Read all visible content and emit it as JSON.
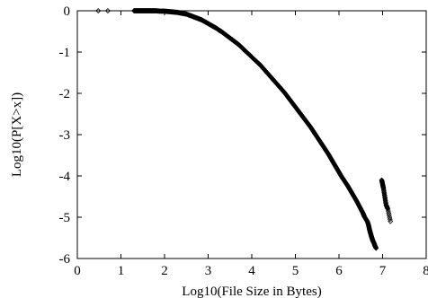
{
  "chart_data": {
    "type": "scatter",
    "title": "",
    "xlabel": "Log10(File Size in Bytes)",
    "ylabel": "Log10(P[X>x])",
    "xlim": [
      0,
      8
    ],
    "ylim": [
      -6,
      0
    ],
    "xticks": [
      "0",
      "1",
      "2",
      "3",
      "4",
      "5",
      "6",
      "7",
      "8"
    ],
    "yticks": [
      "0",
      "-1",
      "-2",
      "-3",
      "-4",
      "-5",
      "-6"
    ],
    "grid": false,
    "legend": "none",
    "marker": "diamond-open",
    "series": [
      {
        "x": [
          0.48,
          0.7,
          1.3,
          1.35,
          1.4,
          1.45,
          1.5,
          1.55,
          1.6,
          1.65,
          1.7,
          1.75,
          1.8,
          1.85,
          1.9,
          1.95,
          2.0,
          2.05,
          2.1,
          2.15,
          2.2,
          2.25,
          2.3,
          2.35,
          2.4,
          2.45,
          2.5,
          2.55,
          2.6,
          2.65,
          2.7,
          2.75,
          2.8,
          2.85,
          2.9,
          2.95,
          3.0,
          3.05,
          3.1,
          3.15,
          3.2,
          3.25,
          3.3,
          3.35,
          3.4,
          3.45,
          3.5,
          3.55,
          3.6,
          3.65,
          3.7,
          3.75,
          3.8,
          3.85,
          3.9,
          3.95,
          4.0,
          4.05,
          4.1,
          4.15,
          4.2,
          4.25,
          4.3,
          4.35,
          4.4,
          4.45,
          4.5,
          4.55,
          4.6,
          4.65,
          4.7,
          4.75,
          4.8,
          4.85,
          4.9,
          4.95,
          5.0,
          5.05,
          5.1,
          5.15,
          5.2,
          5.25,
          5.3,
          5.35,
          5.4,
          5.45,
          5.5,
          5.55,
          5.6,
          5.65,
          5.7,
          5.75,
          5.8,
          5.85,
          5.9,
          5.95,
          6.0,
          6.05,
          6.1,
          6.15,
          6.2,
          6.25,
          6.3,
          6.35,
          6.4,
          6.45,
          6.5,
          6.55,
          6.58,
          6.62,
          6.65,
          6.68,
          6.7,
          6.72,
          6.74,
          6.76,
          6.78,
          6.8,
          6.82,
          6.85,
          6.98,
          7.0,
          7.02,
          7.05,
          7.08,
          7.12,
          7.18
        ],
        "y": [
          0.0,
          0.0,
          0.0,
          0.0,
          0.0,
          0.0,
          0.0,
          0.0,
          0.0,
          0.0,
          0.0,
          0.0,
          0.0,
          -0.005,
          -0.01,
          -0.01,
          -0.01,
          -0.015,
          -0.02,
          -0.025,
          -0.03,
          -0.035,
          -0.04,
          -0.05,
          -0.06,
          -0.07,
          -0.08,
          -0.1,
          -0.12,
          -0.14,
          -0.16,
          -0.18,
          -0.2,
          -0.22,
          -0.25,
          -0.28,
          -0.31,
          -0.34,
          -0.37,
          -0.4,
          -0.43,
          -0.47,
          -0.5,
          -0.54,
          -0.58,
          -0.62,
          -0.66,
          -0.7,
          -0.74,
          -0.78,
          -0.82,
          -0.87,
          -0.92,
          -0.97,
          -1.02,
          -1.07,
          -1.12,
          -1.17,
          -1.22,
          -1.27,
          -1.32,
          -1.38,
          -1.44,
          -1.5,
          -1.56,
          -1.62,
          -1.68,
          -1.74,
          -1.8,
          -1.86,
          -1.92,
          -1.98,
          -2.05,
          -2.12,
          -2.19,
          -2.26,
          -2.33,
          -2.4,
          -2.47,
          -2.54,
          -2.61,
          -2.68,
          -2.75,
          -2.82,
          -2.9,
          -2.98,
          -3.06,
          -3.14,
          -3.22,
          -3.3,
          -3.38,
          -3.46,
          -3.55,
          -3.64,
          -3.73,
          -3.82,
          -3.91,
          -4.0,
          -4.08,
          -4.16,
          -4.24,
          -4.33,
          -4.42,
          -4.51,
          -4.6,
          -4.7,
          -4.8,
          -4.9,
          -4.98,
          -5.05,
          -5.1,
          -5.2,
          -5.3,
          -5.38,
          -5.45,
          -5.52,
          -5.58,
          -5.62,
          -5.68,
          -5.75,
          -4.1,
          -4.2,
          -4.3,
          -4.5,
          -4.7,
          -4.8,
          -5.1
        ]
      }
    ]
  }
}
